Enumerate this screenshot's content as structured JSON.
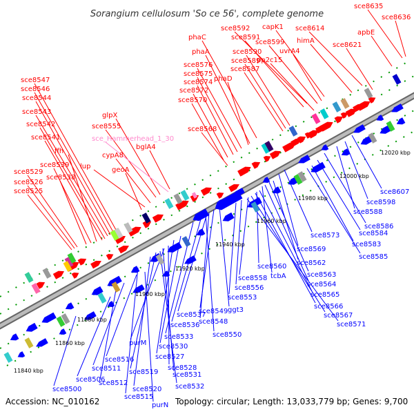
{
  "title": "Sorangium cellulosum 'So ce 56', complete genome",
  "footer": {
    "accession": "Accession: NC_010162",
    "summary": "Topology: circular; Length: 13,033,779 bp; Genes: 9,700"
  },
  "colors": {
    "forward": "#ff0000",
    "reverse": "#0000ff",
    "rna": "#ff88cc",
    "backbone": "#999999",
    "tick": "#009900"
  },
  "kbp_ticks": [
    "11840 kbp",
    "11860 kbp",
    "11880 kbp",
    "11900 kbp",
    "11920 kbp",
    "11940 kbp",
    "11960 kbp",
    "11980 kbp",
    "12000 kbp",
    "12020 kbp"
  ],
  "top_labels": [
    "sce8635",
    "sce8636",
    "apbE",
    "sce8614",
    "himA",
    "sce8621",
    "capK1",
    "sce8592",
    "sce8591",
    "sce8599",
    "uvrA4",
    "pp2c15",
    "sce8590",
    "sce8589",
    "sce8587",
    "phaC",
    "phaA",
    "sce8576",
    "sce8575",
    "sce8574",
    "phaD",
    "sce8572",
    "sce8570",
    "sce8568",
    "sce8547",
    "sce8546",
    "sce8544",
    "sce8543",
    "sce8542",
    "sce8541",
    "glpX",
    "sce8555",
    "sce_Hammerhead_1_30",
    "bglA4",
    "ffh",
    "cypA8",
    "sce8539",
    "lup",
    "sce8529",
    "sce8538",
    "geoA",
    "sce8526",
    "sce8525"
  ],
  "bottom_labels": [
    "sce8607",
    "sce8598",
    "sce8588",
    "sce8586",
    "sce8584",
    "sce8573",
    "sce8583",
    "sce8569",
    "sce8585",
    "sce8562",
    "sce8560",
    "sce8563",
    "tcbA",
    "sce8564",
    "sce8558",
    "sce8565",
    "sce8556",
    "sce8553",
    "sce8566",
    "sce8537",
    "sce8549",
    "ggt3",
    "sce8567",
    "sce8571",
    "sce8536",
    "sce8548",
    "sce8533",
    "sce8550",
    "purM",
    "sce8530",
    "sce8527",
    "sce8516",
    "sce8528",
    "sce8531",
    "sce8511",
    "sce8519",
    "sce8500",
    "sce8506",
    "sce8512",
    "sce8520",
    "sce8532",
    "sce8515",
    "purN"
  ]
}
